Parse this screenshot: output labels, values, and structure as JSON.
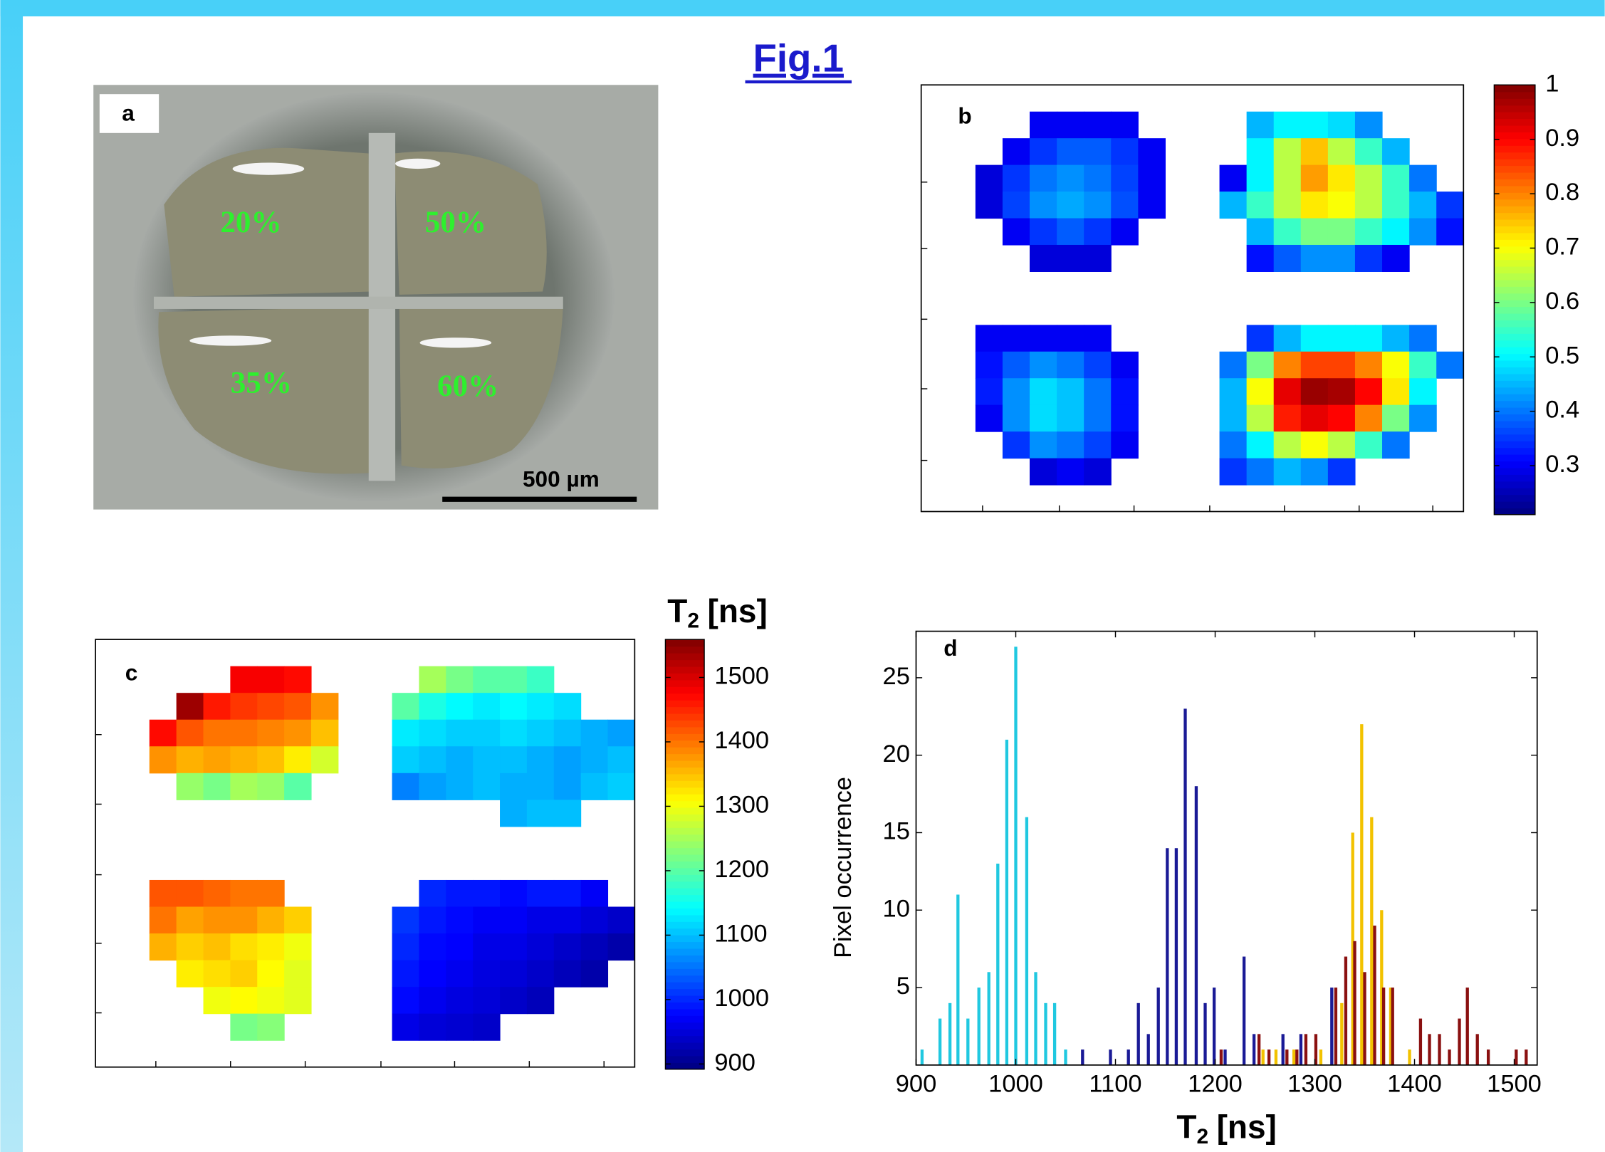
{
  "figure_title": "Fig.1",
  "photo": {
    "label": "a",
    "region_labels": [
      "20%",
      "50%",
      "35%",
      "60%"
    ],
    "scale_bar": "500 µm"
  },
  "chart_data": [
    {
      "type": "heatmap",
      "panel_label": "b",
      "colormap": "jet",
      "zlim": [
        0.21,
        1
      ],
      "zticks": [
        0.3,
        0.4,
        0.5,
        0.6,
        0.7,
        0.8,
        0.9,
        1
      ],
      "z": [
        [
          null,
          null,
          null,
          null,
          null,
          null,
          null,
          null,
          null,
          null,
          null,
          null,
          null,
          null,
          null,
          null,
          null,
          null,
          null,
          null
        ],
        [
          null,
          null,
          null,
          null,
          0.3,
          0.3,
          0.3,
          0.3,
          null,
          null,
          null,
          null,
          0.45,
          0.5,
          0.5,
          0.48,
          0.42,
          null,
          null,
          null
        ],
        [
          null,
          null,
          null,
          0.3,
          0.35,
          0.38,
          0.38,
          0.35,
          0.3,
          null,
          null,
          null,
          0.5,
          0.65,
          0.75,
          0.65,
          0.55,
          0.45,
          null,
          null
        ],
        [
          null,
          null,
          0.28,
          0.35,
          0.4,
          0.42,
          0.4,
          0.36,
          0.3,
          null,
          null,
          0.3,
          0.5,
          0.65,
          0.78,
          0.72,
          0.65,
          0.55,
          0.4,
          null
        ],
        [
          null,
          null,
          0.28,
          0.36,
          0.42,
          0.44,
          0.42,
          0.37,
          0.3,
          null,
          null,
          0.45,
          0.55,
          0.65,
          0.72,
          0.7,
          0.65,
          0.55,
          0.45,
          0.35
        ],
        [
          null,
          null,
          null,
          0.3,
          0.35,
          0.38,
          0.35,
          0.3,
          null,
          null,
          null,
          null,
          0.45,
          0.55,
          0.6,
          0.6,
          0.55,
          0.5,
          0.42,
          0.32
        ],
        [
          null,
          null,
          null,
          null,
          0.28,
          0.28,
          0.28,
          null,
          null,
          null,
          null,
          null,
          0.32,
          0.38,
          0.42,
          0.42,
          0.35,
          0.3,
          null,
          null
        ],
        [
          null,
          null,
          null,
          null,
          null,
          null,
          null,
          null,
          null,
          null,
          null,
          null,
          null,
          null,
          null,
          null,
          null,
          null,
          null,
          null
        ],
        [
          null,
          null,
          null,
          null,
          null,
          null,
          null,
          null,
          null,
          null,
          null,
          null,
          null,
          null,
          null,
          null,
          null,
          null,
          null,
          null
        ],
        [
          null,
          null,
          0.3,
          0.3,
          0.3,
          0.3,
          0.3,
          null,
          null,
          null,
          null,
          null,
          0.35,
          0.45,
          0.5,
          0.5,
          0.5,
          0.45,
          0.4,
          null
        ],
        [
          null,
          null,
          0.32,
          0.38,
          0.42,
          0.4,
          0.36,
          0.3,
          null,
          null,
          null,
          0.4,
          0.6,
          0.8,
          0.85,
          0.85,
          0.8,
          0.7,
          0.55,
          0.4
        ],
        [
          null,
          null,
          0.33,
          0.42,
          0.48,
          0.46,
          0.4,
          0.32,
          null,
          null,
          null,
          0.45,
          0.7,
          0.92,
          0.98,
          0.97,
          0.9,
          0.72,
          0.5,
          null
        ],
        [
          null,
          null,
          0.3,
          0.42,
          0.48,
          0.46,
          0.4,
          0.32,
          null,
          null,
          null,
          0.45,
          0.65,
          0.88,
          0.92,
          0.9,
          0.8,
          0.6,
          0.42,
          null
        ],
        [
          null,
          null,
          null,
          0.35,
          0.42,
          0.4,
          0.36,
          0.3,
          null,
          null,
          null,
          0.4,
          0.5,
          0.65,
          0.7,
          0.65,
          0.55,
          0.4,
          null,
          null
        ],
        [
          null,
          null,
          null,
          null,
          0.28,
          0.3,
          0.28,
          null,
          null,
          null,
          null,
          0.35,
          0.4,
          0.45,
          0.42,
          0.35,
          null,
          null,
          null,
          null
        ],
        [
          null,
          null,
          null,
          null,
          null,
          null,
          null,
          null,
          null,
          null,
          null,
          null,
          null,
          null,
          null,
          null,
          null,
          null,
          null,
          null
        ]
      ]
    },
    {
      "type": "heatmap",
      "panel_label": "c",
      "colormap": "jet",
      "zlim": [
        892,
        1559
      ],
      "zticks": [
        900,
        1000,
        1100,
        1200,
        1300,
        1400,
        1500
      ],
      "colorbar_label": {
        "base": "T",
        "sub": "2",
        "unit": "[ns]"
      },
      "z": [
        [
          null,
          null,
          null,
          null,
          null,
          null,
          null,
          null,
          null,
          null,
          null,
          null,
          null,
          null,
          null,
          null,
          null,
          null,
          null,
          null
        ],
        [
          null,
          null,
          null,
          null,
          null,
          1480,
          1480,
          1470,
          null,
          null,
          null,
          null,
          1250,
          1220,
          1200,
          1200,
          1180,
          null,
          null,
          null
        ],
        [
          null,
          null,
          null,
          1540,
          1460,
          1440,
          1430,
          1420,
          1380,
          null,
          null,
          1200,
          1160,
          1140,
          1130,
          1140,
          1130,
          1120,
          null,
          null
        ],
        [
          null,
          null,
          1470,
          1420,
          1400,
          1400,
          1390,
          1380,
          1350,
          null,
          null,
          1130,
          1120,
          1110,
          1110,
          1120,
          1110,
          1100,
          1090,
          1080
        ],
        [
          null,
          null,
          1380,
          1360,
          1370,
          1360,
          1350,
          1320,
          1280,
          null,
          null,
          1110,
          1100,
          1090,
          1100,
          1100,
          1090,
          1080,
          1090,
          1100
        ],
        [
          null,
          null,
          null,
          1240,
          1220,
          1250,
          1240,
          1200,
          null,
          null,
          null,
          1060,
          1080,
          1090,
          1100,
          1090,
          1090,
          1080,
          1100,
          1110
        ],
        [
          null,
          null,
          null,
          null,
          null,
          null,
          null,
          null,
          null,
          null,
          null,
          null,
          null,
          null,
          null,
          1090,
          1100,
          1100,
          null,
          null
        ],
        [
          null,
          null,
          null,
          null,
          null,
          null,
          null,
          null,
          null,
          null,
          null,
          null,
          null,
          null,
          null,
          null,
          null,
          null,
          null,
          null
        ],
        [
          null,
          null,
          null,
          null,
          null,
          null,
          null,
          null,
          null,
          null,
          null,
          null,
          null,
          null,
          null,
          null,
          null,
          null,
          null,
          null
        ],
        [
          null,
          null,
          1420,
          1420,
          1410,
          1400,
          1400,
          null,
          null,
          null,
          null,
          null,
          1000,
          990,
          990,
          980,
          990,
          990,
          970,
          null
        ],
        [
          null,
          null,
          1400,
          1370,
          1380,
          1380,
          1360,
          1340,
          null,
          null,
          null,
          1010,
          990,
          980,
          970,
          970,
          960,
          960,
          950,
          940
        ],
        [
          null,
          null,
          1360,
          1340,
          1350,
          1330,
          1320,
          1300,
          null,
          null,
          null,
          1000,
          980,
          975,
          960,
          960,
          950,
          940,
          930,
          920
        ],
        [
          null,
          null,
          null,
          1320,
          1330,
          1340,
          1310,
          1290,
          null,
          null,
          null,
          990,
          975,
          965,
          955,
          950,
          940,
          930,
          920,
          null
        ],
        [
          null,
          null,
          null,
          null,
          1300,
          1310,
          1300,
          1290,
          null,
          null,
          null,
          980,
          965,
          955,
          950,
          940,
          930,
          null,
          null,
          null
        ],
        [
          null,
          null,
          null,
          null,
          null,
          1220,
          1230,
          null,
          null,
          null,
          null,
          960,
          950,
          945,
          940,
          null,
          null,
          null,
          null,
          null
        ],
        [
          null,
          null,
          null,
          null,
          null,
          null,
          null,
          null,
          null,
          null,
          null,
          null,
          null,
          null,
          null,
          null,
          null,
          null,
          null,
          null
        ]
      ]
    },
    {
      "type": "bar",
      "panel_label": "d",
      "xlim": [
        900,
        1523
      ],
      "ylim": [
        0,
        28
      ],
      "xticks": [
        900,
        1000,
        1100,
        1200,
        1300,
        1400,
        1500
      ],
      "yticks": [
        5,
        10,
        15,
        20,
        25
      ],
      "xlabel": {
        "base": "T",
        "sub": "2",
        "unit": "[ns]"
      },
      "ylabel": "Pixel occurrence",
      "series": [
        {
          "color": "#20c8e0",
          "x": [
            906,
            924,
            934,
            942,
            952,
            963,
            973,
            982,
            991,
            1000,
            1011,
            1020,
            1030,
            1039,
            1050
          ],
          "values": [
            1,
            3,
            4,
            11,
            3,
            5,
            6,
            13,
            21,
            27,
            16,
            6,
            4,
            4,
            1
          ]
        },
        {
          "color": "#1a1a96",
          "x": [
            1067,
            1095,
            1113,
            1123,
            1133,
            1143,
            1152,
            1161,
            1170,
            1181,
            1190,
            1199,
            1210,
            1229,
            1239,
            1268,
            1286,
            1317
          ],
          "values": [
            1,
            1,
            1,
            4,
            2,
            5,
            14,
            14,
            23,
            18,
            4,
            5,
            1,
            7,
            2,
            2,
            2,
            5
          ]
        },
        {
          "color": "#f2c200",
          "x": [
            1248,
            1261,
            1279,
            1306,
            1327,
            1338,
            1347,
            1357,
            1367,
            1376,
            1395
          ],
          "values": [
            1,
            1,
            1,
            1,
            4,
            15,
            22,
            16,
            10,
            5,
            1
          ]
        },
        {
          "color": "#8a1010",
          "x": [
            1206,
            1244,
            1254,
            1272,
            1282,
            1291,
            1301,
            1321,
            1331,
            1340,
            1350,
            1360,
            1369,
            1378,
            1406,
            1415,
            1425,
            1435,
            1445,
            1453,
            1463,
            1474,
            1502,
            1512
          ],
          "values": [
            1,
            2,
            1,
            1,
            1,
            2,
            2,
            5,
            7,
            8,
            6,
            9,
            5,
            5,
            3,
            2,
            2,
            1,
            3,
            5,
            2,
            1,
            1,
            1
          ]
        }
      ]
    }
  ]
}
